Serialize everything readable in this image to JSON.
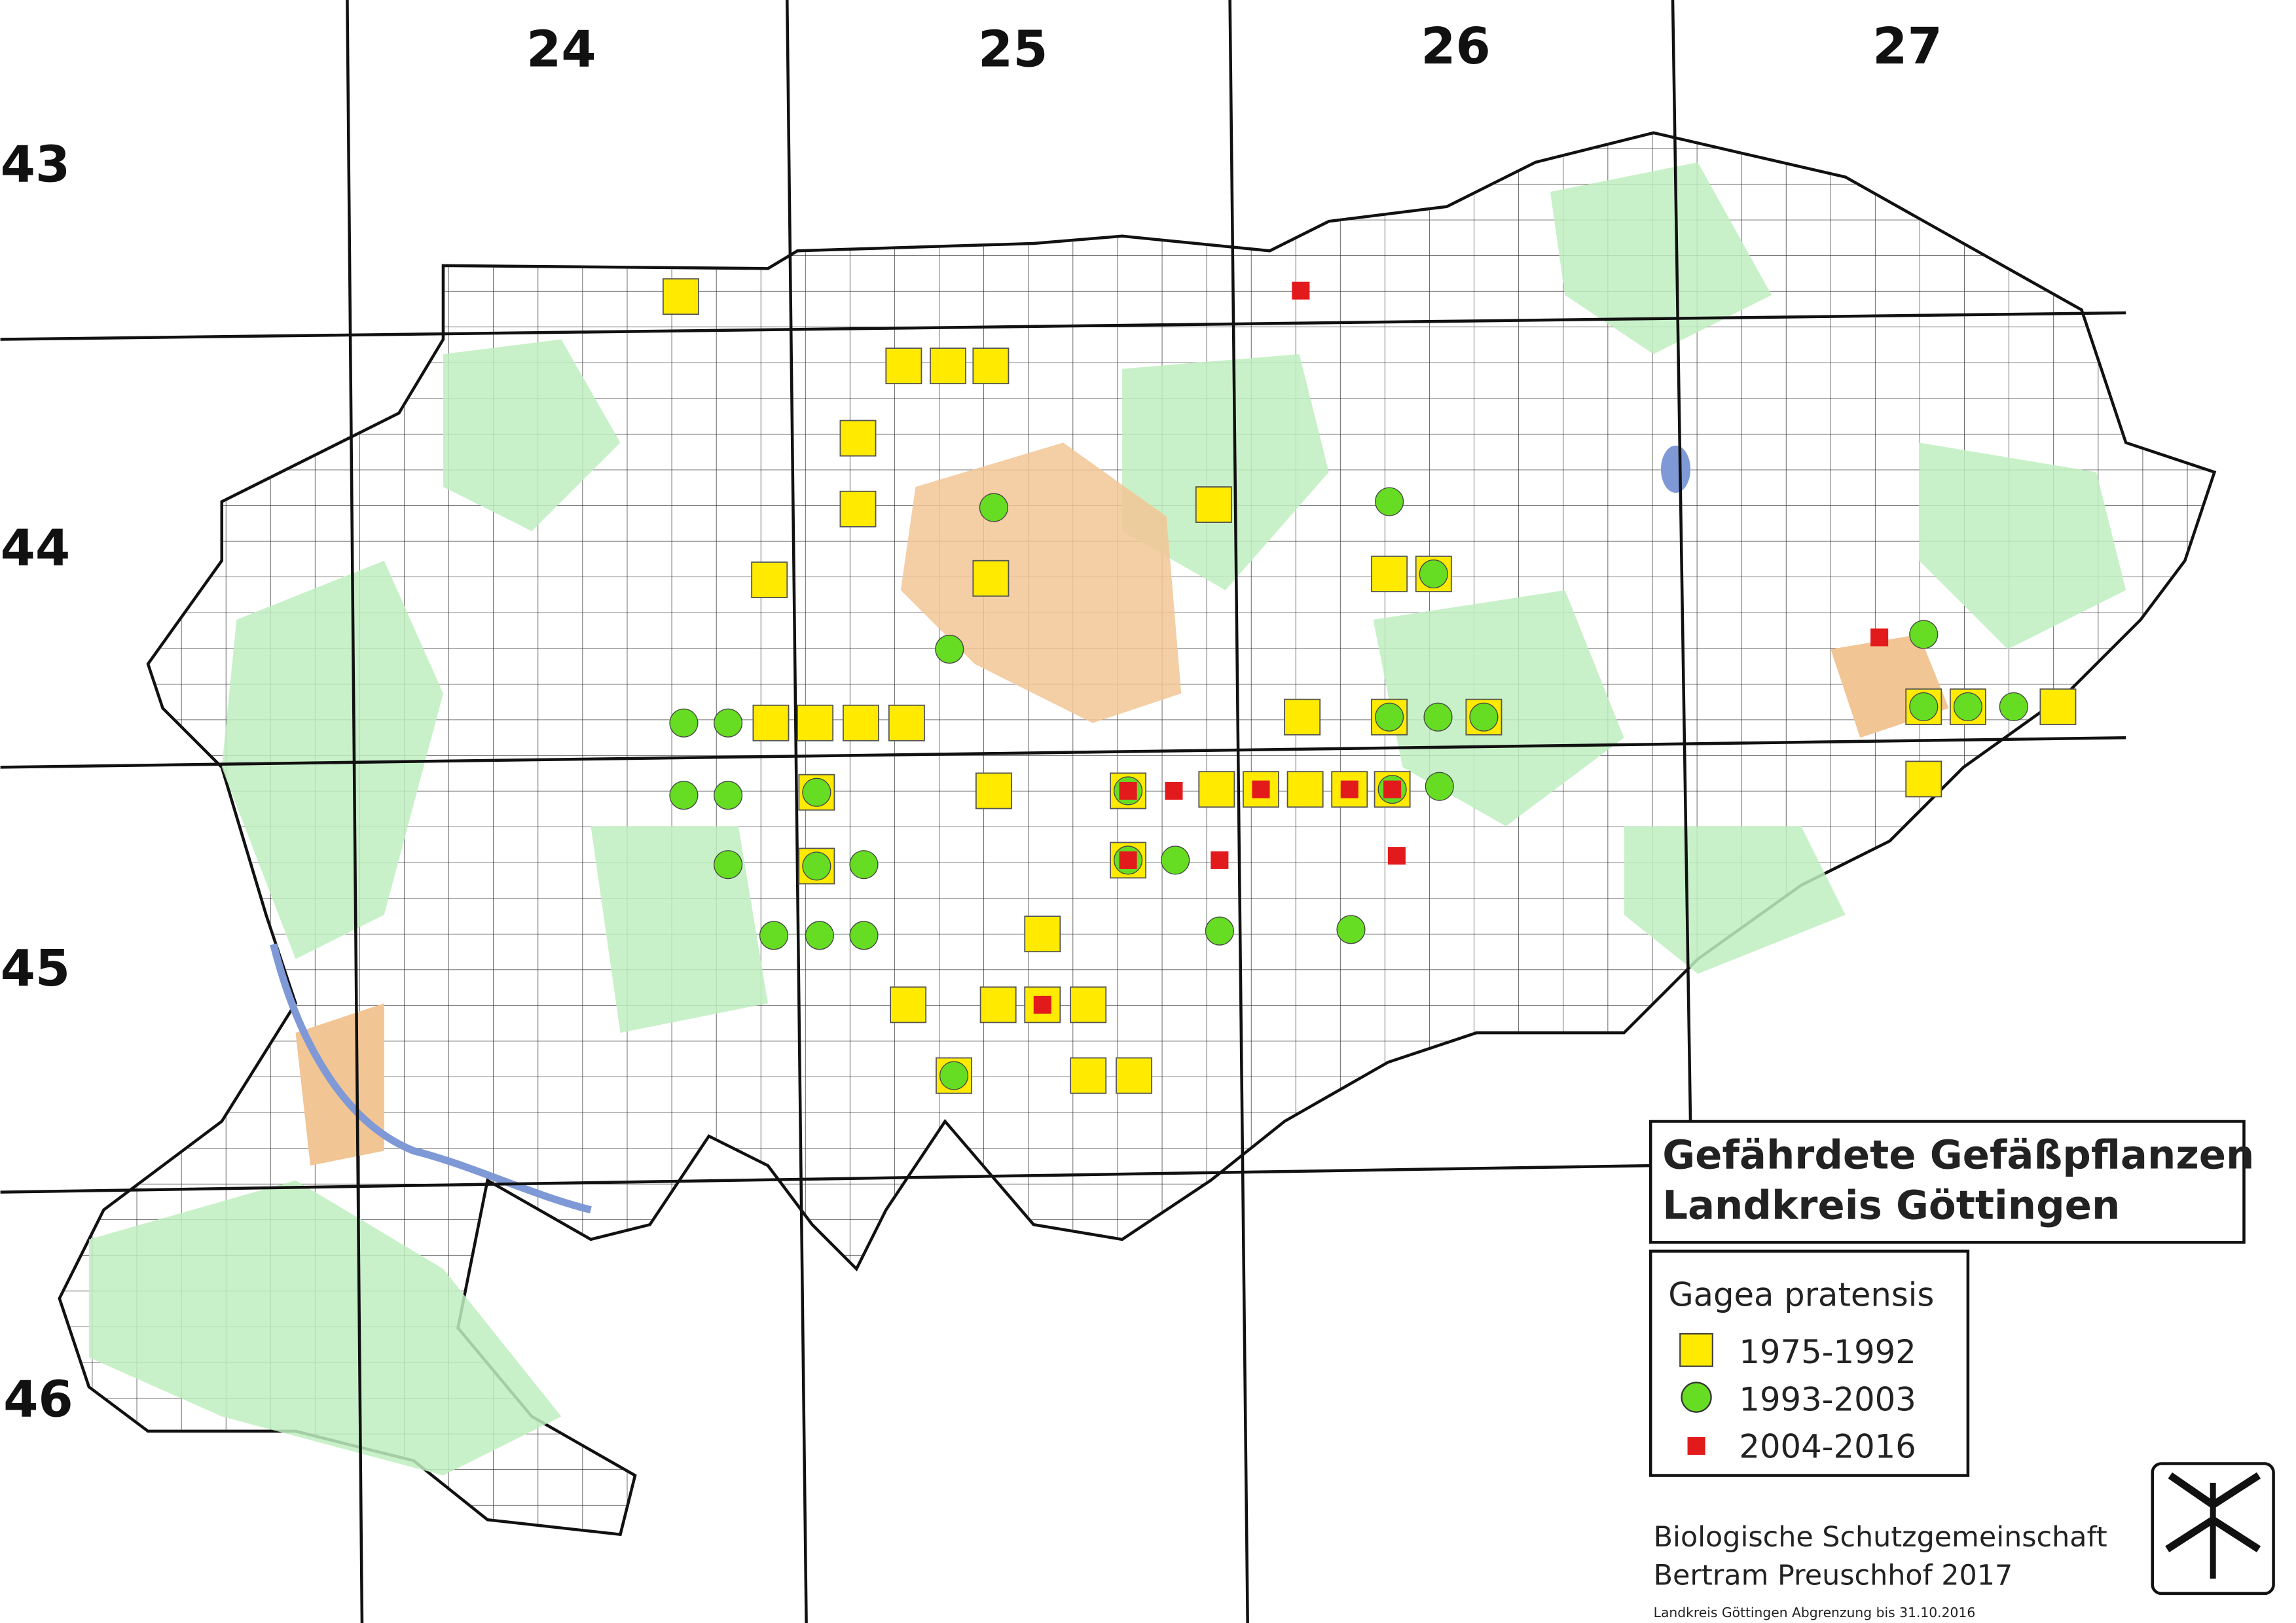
{
  "grid_labels": {
    "columns": [
      "24",
      "25",
      "26",
      "27"
    ],
    "rows": [
      "43",
      "44",
      "45",
      "46"
    ]
  },
  "title": {
    "line1": "Gefährdete Gefäßpflanzen",
    "line2": "Landkreis Göttingen"
  },
  "legend": {
    "species": "Gagea pratensis",
    "entries": [
      "1975-1992",
      "1993-2003",
      "2004-2016"
    ]
  },
  "credits": {
    "line1": "Biologische Schutzgemeinschaft",
    "line2": "Bertram Preuschhof 2017",
    "note": "Landkreis Göttingen Abgrenzung bis 31.10.2016"
  }
}
